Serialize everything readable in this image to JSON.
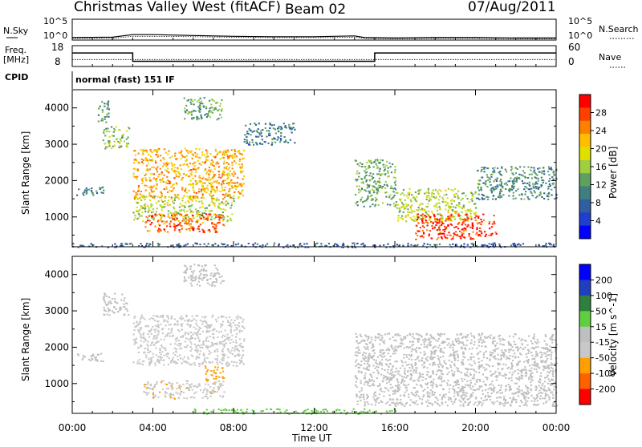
{
  "header": {
    "title": "Christmas Valley West (fitACF)",
    "beam": "Beam 02",
    "date": "07/Aug/2011"
  },
  "params": {
    "nsky_label": "N.Sky",
    "nsearch_label": "N.Search",
    "freq_label_line1": "Freq.",
    "freq_label_line2": "[MHz]",
    "nave_label": "Nave",
    "cpid_label": "CPID",
    "cpid_value": "normal (fast) 151 IF",
    "noise_ticks": [
      "10^5",
      "10^0"
    ],
    "noise_ticks_right": [
      "10^5",
      "10^0"
    ],
    "freq_ticks": [
      "18",
      "8"
    ],
    "nave_ticks": [
      "60",
      "0"
    ]
  },
  "x_axis": {
    "label": "Time UT",
    "ticks": [
      "00:00",
      "04:00",
      "08:00",
      "12:00",
      "16:00",
      "20:00",
      "00:00"
    ]
  },
  "y_axis": {
    "label": "Slant Range [km]",
    "ticks": [
      "4000",
      "3000",
      "2000",
      "1000"
    ],
    "range_km": [
      180,
      4500
    ]
  },
  "power_scale": {
    "title": "Power [dB]",
    "ticks": [
      "28",
      "24",
      "20",
      "16",
      "12",
      "8",
      "4"
    ],
    "colors": [
      "#0000ff",
      "#1f3fcc",
      "#2f5f9f",
      "#3f7f7f",
      "#5fa05f",
      "#9fcf3f",
      "#dfdf00",
      "#ffbf00",
      "#ff8000",
      "#ff4000",
      "#ff0000"
    ]
  },
  "velocity_scale": {
    "title": "Velocity [m s^-1]",
    "ticks": [
      "200",
      "100",
      "50",
      "15",
      "-15",
      "-50",
      "-100",
      "-200"
    ],
    "colors": [
      "#ff0000",
      "#ff6000",
      "#ff9f00",
      "#c8c8c8",
      "#bfbfbf",
      "#5fcf3f",
      "#2f7f3f",
      "#1f3fbf",
      "#0000ff"
    ]
  },
  "chart_data": [
    {
      "type": "line",
      "name": "noise",
      "x_hours": [
        0,
        2,
        3,
        4,
        6,
        8,
        10,
        12,
        14,
        14.5,
        16,
        18,
        20,
        22,
        24
      ],
      "nsky_log": [
        0.6,
        0.7,
        1.3,
        1.3,
        1.1,
        0.9,
        0.8,
        0.8,
        1.0,
        0.6,
        0.5,
        0.6,
        0.6,
        0.5,
        0.5
      ],
      "nsearch_log": [
        0.4,
        0.4,
        0.9,
        0.9,
        0.8,
        0.7,
        0.6,
        0.6,
        0.7,
        0.4,
        0.3,
        0.4,
        0.4,
        0.3,
        0.3
      ],
      "ylim": [
        0,
        5
      ]
    },
    {
      "type": "line",
      "name": "frequency",
      "x_hours": [
        0,
        3.0,
        3.0,
        15.0,
        15.0,
        24
      ],
      "freq_mhz": [
        14.5,
        14.5,
        10.5,
        10.5,
        14.5,
        14.5
      ],
      "nave": [
        20,
        20,
        20,
        20,
        20,
        20
      ],
      "ylim": [
        8,
        18
      ]
    },
    {
      "type": "heatmap",
      "name": "power",
      "x": "Time UT (hours)",
      "y": "Slant Range (km)",
      "ylim": [
        180,
        4500
      ],
      "patches": [
        {
          "t0": 0.2,
          "t1": 1.6,
          "r0": 1600,
          "r1": 1850,
          "v": 8
        },
        {
          "t0": 1.5,
          "t1": 2.8,
          "r0": 2900,
          "r1": 3500,
          "v": 14
        },
        {
          "t0": 1.2,
          "t1": 1.8,
          "r0": 3600,
          "r1": 4200,
          "v": 10
        },
        {
          "t0": 3.0,
          "t1": 8.5,
          "r0": 1500,
          "r1": 2900,
          "v": 22
        },
        {
          "t0": 3.0,
          "t1": 8.0,
          "r0": 900,
          "r1": 1600,
          "v": 16
        },
        {
          "t0": 3.5,
          "t1": 7.5,
          "r0": 600,
          "r1": 1100,
          "v": 26
        },
        {
          "t0": 5.5,
          "t1": 7.5,
          "r0": 3700,
          "r1": 4300,
          "v": 12
        },
        {
          "t0": 8.5,
          "t1": 11.0,
          "r0": 3000,
          "r1": 3600,
          "v": 8
        },
        {
          "t0": 14.0,
          "t1": 16.0,
          "r0": 1300,
          "r1": 2600,
          "v": 12
        },
        {
          "t0": 16.0,
          "t1": 20.0,
          "r0": 900,
          "r1": 1800,
          "v": 16
        },
        {
          "t0": 17.0,
          "t1": 21.0,
          "r0": 400,
          "r1": 1100,
          "v": 28
        },
        {
          "t0": 20.0,
          "t1": 24.0,
          "r0": 1500,
          "r1": 2400,
          "v": 10
        },
        {
          "t0": 0.0,
          "t1": 24.0,
          "r0": 180,
          "r1": 300,
          "v": 6
        }
      ]
    },
    {
      "type": "heatmap",
      "name": "velocity",
      "x": "Time UT (hours)",
      "y": "Slant Range (km)",
      "ylim": [
        180,
        4500
      ],
      "patches": [
        {
          "t0": 0.2,
          "t1": 1.6,
          "r0": 1600,
          "r1": 1850,
          "v": 0
        },
        {
          "t0": 1.5,
          "t1": 2.8,
          "r0": 2900,
          "r1": 3500,
          "v": 0
        },
        {
          "t0": 3.0,
          "t1": 8.5,
          "r0": 1500,
          "r1": 2900,
          "v": -40
        },
        {
          "t0": 3.5,
          "t1": 7.5,
          "r0": 600,
          "r1": 1100,
          "v": -80
        },
        {
          "t0": 6.5,
          "t1": 7.5,
          "r0": 1100,
          "r1": 1500,
          "v": -90
        },
        {
          "t0": 5.5,
          "t1": 7.5,
          "r0": 3700,
          "r1": 4300,
          "v": 0
        },
        {
          "t0": 14.0,
          "t1": 24.0,
          "r0": 400,
          "r1": 2400,
          "v": 0
        },
        {
          "t0": 6.0,
          "t1": 16.0,
          "r0": 180,
          "r1": 320,
          "v": 40
        }
      ]
    }
  ]
}
